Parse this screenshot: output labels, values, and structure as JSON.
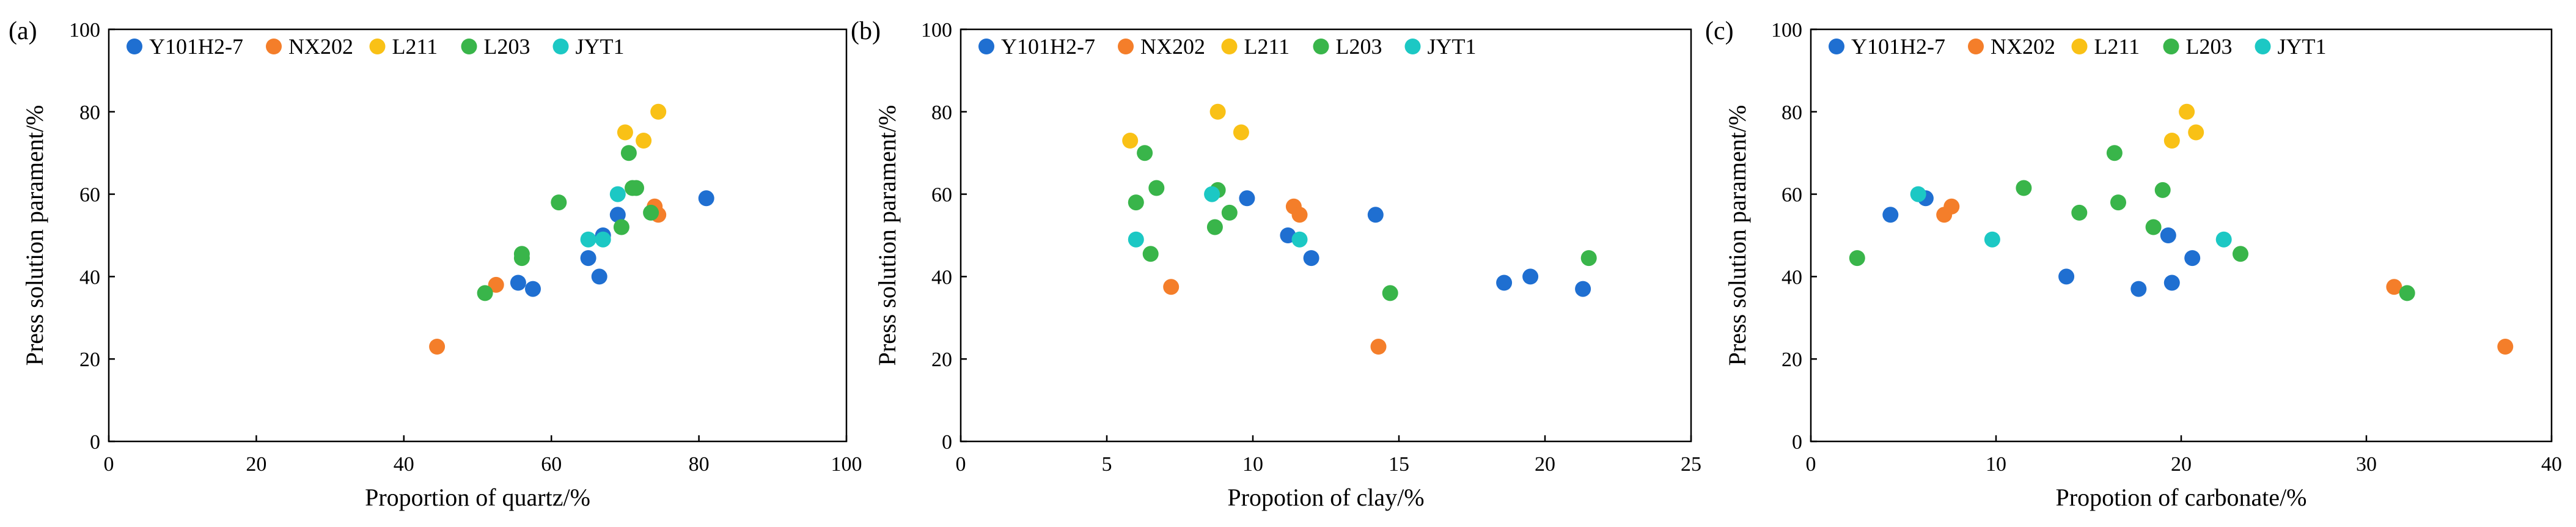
{
  "series_colors": {
    "Y101H2-7": "#1f6fd1",
    "NX202": "#f47e2a",
    "L211": "#f9c116",
    "L203": "#39b54a",
    "JYT1": "#1cc8c4"
  },
  "chart_data": [
    {
      "type": "scatter",
      "panel_label": "(a)",
      "xlabel": "Proportion of quartz/%",
      "ylabel": "Press solution parament/%",
      "xlim": [
        0,
        100
      ],
      "ylim": [
        0,
        100
      ],
      "xticks": [
        "0",
        "20",
        "40",
        "60",
        "80",
        "100"
      ],
      "yticks": [
        "0",
        "20",
        "40",
        "60",
        "80",
        "100"
      ],
      "legend": [
        "Y101H2-7",
        "NX202",
        "L211",
        "L203",
        "JYT1"
      ],
      "series": [
        {
          "name": "Y101H2-7",
          "points": [
            [
              55.5,
              38.5
            ],
            [
              57.5,
              37
            ],
            [
              65,
              44.5
            ],
            [
              66.5,
              40
            ],
            [
              67,
              50
            ],
            [
              69,
              55
            ],
            [
              81,
              59
            ]
          ]
        },
        {
          "name": "NX202",
          "points": [
            [
              44.5,
              23
            ],
            [
              52.5,
              38
            ],
            [
              74,
              57
            ],
            [
              74.5,
              55
            ]
          ]
        },
        {
          "name": "L211",
          "points": [
            [
              70,
              75
            ],
            [
              72.5,
              73
            ],
            [
              74.5,
              80
            ]
          ]
        },
        {
          "name": "L203",
          "points": [
            [
              51,
              36
            ],
            [
              56,
              44.5
            ],
            [
              56,
              45.5
            ],
            [
              61,
              58
            ],
            [
              69.5,
              52
            ],
            [
              70.5,
              70
            ],
            [
              71,
              61.5
            ],
            [
              71.5,
              61.5
            ],
            [
              73.5,
              55.5
            ]
          ]
        },
        {
          "name": "JYT1",
          "points": [
            [
              65,
              49
            ],
            [
              67,
              49
            ],
            [
              69,
              60
            ]
          ]
        }
      ]
    },
    {
      "type": "scatter",
      "panel_label": "(b)",
      "xlabel": "Propotion of clay/%",
      "ylabel": "Press solution parament/%",
      "xlim": [
        0,
        25
      ],
      "ylim": [
        0,
        100
      ],
      "xticks": [
        "0",
        "5",
        "10",
        "15",
        "20",
        "25"
      ],
      "yticks": [
        "0",
        "20",
        "40",
        "60",
        "80",
        "100"
      ],
      "legend": [
        "Y101H2-7",
        "NX202",
        "L211",
        "L203",
        "JYT1"
      ],
      "series": [
        {
          "name": "Y101H2-7",
          "points": [
            [
              9.8,
              59
            ],
            [
              11.2,
              50
            ],
            [
              12,
              44.5
            ],
            [
              14.2,
              55
            ],
            [
              18.6,
              38.5
            ],
            [
              19.5,
              40
            ],
            [
              21.3,
              37
            ]
          ]
        },
        {
          "name": "NX202",
          "points": [
            [
              7.2,
              37.5
            ],
            [
              11.4,
              57
            ],
            [
              11.6,
              55
            ],
            [
              14.3,
              23
            ]
          ]
        },
        {
          "name": "L211",
          "points": [
            [
              5.8,
              73
            ],
            [
              8.8,
              80
            ],
            [
              9.6,
              75
            ]
          ]
        },
        {
          "name": "L203",
          "points": [
            [
              6,
              58
            ],
            [
              6.3,
              70
            ],
            [
              6.5,
              45.5
            ],
            [
              6.7,
              61.5
            ],
            [
              8.7,
              52
            ],
            [
              8.8,
              61
            ],
            [
              9.2,
              55.5
            ],
            [
              14.7,
              36
            ],
            [
              21.5,
              44.5
            ]
          ]
        },
        {
          "name": "JYT1",
          "points": [
            [
              6,
              49
            ],
            [
              8.6,
              60
            ],
            [
              11.6,
              49
            ]
          ]
        }
      ]
    },
    {
      "type": "scatter",
      "panel_label": "(c)",
      "xlabel": "Propotion of carbonate/%",
      "ylabel": "Press solution parament/%",
      "xlim": [
        0,
        40
      ],
      "ylim": [
        0,
        100
      ],
      "xticks": [
        "0",
        "10",
        "20",
        "30",
        "40"
      ],
      "yticks": [
        "0",
        "20",
        "40",
        "60",
        "80",
        "100"
      ],
      "legend": [
        "Y101H2-7",
        "NX202",
        "L211",
        "L203",
        "JYT1"
      ],
      "series": [
        {
          "name": "Y101H2-7",
          "points": [
            [
              4.3,
              55
            ],
            [
              6.2,
              59
            ],
            [
              13.8,
              40
            ],
            [
              17.7,
              37
            ],
            [
              19.3,
              50
            ],
            [
              19.5,
              38.5
            ],
            [
              20.6,
              44.5
            ]
          ]
        },
        {
          "name": "NX202",
          "points": [
            [
              7.2,
              55
            ],
            [
              7.6,
              57
            ],
            [
              31.5,
              37.5
            ],
            [
              37.5,
              23
            ]
          ]
        },
        {
          "name": "L211",
          "points": [
            [
              19.5,
              73
            ],
            [
              20.3,
              80
            ],
            [
              20.8,
              75
            ]
          ]
        },
        {
          "name": "L203",
          "points": [
            [
              2.5,
              44.5
            ],
            [
              11.5,
              61.5
            ],
            [
              14.5,
              55.5
            ],
            [
              16.4,
              70
            ],
            [
              16.6,
              58
            ],
            [
              18.5,
              52
            ],
            [
              19,
              61
            ],
            [
              23.2,
              45.5
            ],
            [
              32.2,
              36
            ]
          ]
        },
        {
          "name": "JYT1",
          "points": [
            [
              5.8,
              60
            ],
            [
              9.8,
              49
            ],
            [
              22.3,
              49
            ]
          ]
        }
      ]
    }
  ]
}
